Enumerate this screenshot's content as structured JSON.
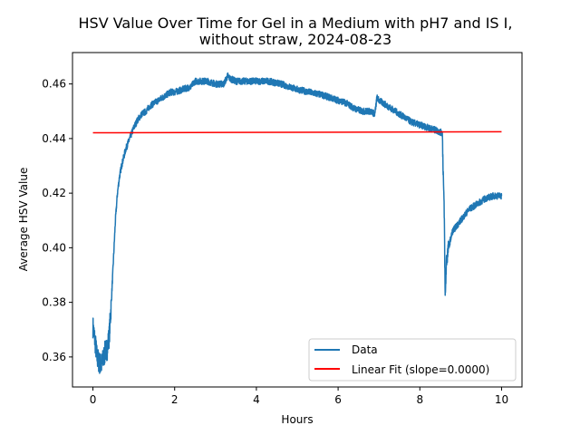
{
  "chart_data": {
    "type": "line",
    "title_line1": "HSV Value Over Time for Gel in a Medium with pH7 and IS I,",
    "title_line2": "without straw, 2024-08-23",
    "xlabel": "Hours",
    "ylabel": "Average HSV Value",
    "xlim": [
      -0.5,
      10.5
    ],
    "ylim": [
      0.349,
      0.4715
    ],
    "xticks": [
      0,
      2,
      4,
      6,
      8,
      10
    ],
    "xtick_labels": [
      "0",
      "2",
      "4",
      "6",
      "8",
      "10"
    ],
    "yticks": [
      0.36,
      0.38,
      0.4,
      0.42,
      0.44,
      0.46
    ],
    "ytick_labels": [
      "0.36",
      "0.38",
      "0.40",
      "0.42",
      "0.44",
      "0.46"
    ],
    "legend_position": "lower-right",
    "series": [
      {
        "name": "Data",
        "color": "#1f77b4",
        "noise": 0.0012,
        "x": [
          0,
          0.05,
          0.1,
          0.15,
          0.2,
          0.25,
          0.3,
          0.35,
          0.4,
          0.45,
          0.5,
          0.55,
          0.6,
          0.65,
          0.7,
          0.75,
          0.8,
          0.85,
          0.9,
          0.95,
          1.0,
          1.1,
          1.2,
          1.3,
          1.4,
          1.5,
          1.6,
          1.7,
          1.8,
          1.9,
          2.0,
          2.2,
          2.4,
          2.5,
          2.6,
          2.8,
          3.0,
          3.2,
          3.3,
          3.35,
          3.5,
          3.8,
          4.0,
          4.3,
          4.6,
          4.8,
          5.0,
          5.3,
          5.6,
          5.8,
          6.0,
          6.2,
          6.4,
          6.6,
          6.8,
          6.9,
          6.95,
          7.0,
          7.2,
          7.4,
          7.6,
          7.8,
          8.0,
          8.2,
          8.4,
          8.55,
          8.6,
          8.62,
          8.65,
          8.7,
          8.8,
          9.0,
          9.2,
          9.4,
          9.6,
          9.8,
          10.0
        ],
        "y": [
          0.371,
          0.366,
          0.36,
          0.358,
          0.357,
          0.359,
          0.362,
          0.363,
          0.368,
          0.38,
          0.395,
          0.41,
          0.42,
          0.426,
          0.43,
          0.433,
          0.436,
          0.438,
          0.44,
          0.442,
          0.444,
          0.447,
          0.449,
          0.45,
          0.452,
          0.453,
          0.454,
          0.455,
          0.456,
          0.457,
          0.457,
          0.458,
          0.459,
          0.461,
          0.461,
          0.461,
          0.46,
          0.46,
          0.463,
          0.462,
          0.461,
          0.461,
          0.461,
          0.461,
          0.46,
          0.459,
          0.458,
          0.457,
          0.456,
          0.455,
          0.454,
          0.453,
          0.451,
          0.45,
          0.45,
          0.449,
          0.455,
          0.454,
          0.452,
          0.45,
          0.448,
          0.446,
          0.445,
          0.444,
          0.443,
          0.442,
          0.41,
          0.381,
          0.395,
          0.4,
          0.406,
          0.41,
          0.414,
          0.416,
          0.418,
          0.419,
          0.419
        ]
      },
      {
        "name": "Linear Fit (slope=0.0000)",
        "color": "#ff0000",
        "x": [
          0,
          10
        ],
        "y": [
          0.4421,
          0.4425
        ]
      }
    ]
  }
}
